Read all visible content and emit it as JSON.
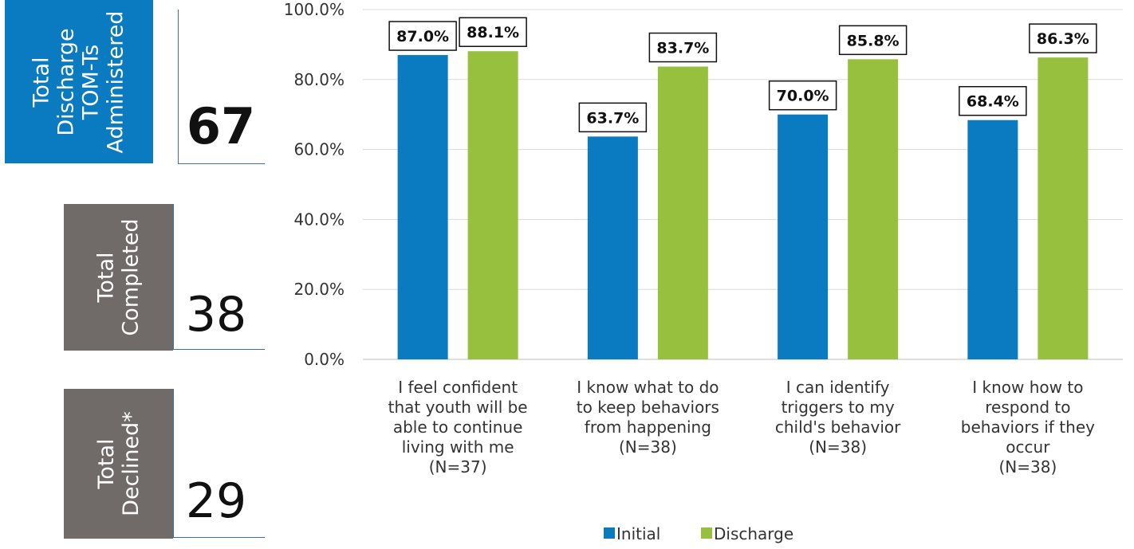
{
  "stats": {
    "administered": {
      "label_lines": [
        "Total",
        "Discharge",
        "TOM-Ts",
        "Administered"
      ],
      "value": "67",
      "color": "#0a7bc1"
    },
    "completed": {
      "label_lines": [
        "Total",
        "Completed"
      ],
      "value": "38",
      "color": "#706b69"
    },
    "declined": {
      "label_lines": [
        "Total",
        "Declined*"
      ],
      "value": "29",
      "color": "#706b69"
    }
  },
  "chart_data": {
    "type": "bar",
    "title": "",
    "xlabel": "",
    "ylabel": "",
    "ylim": [
      0,
      100
    ],
    "y_ticks": [
      "0.0%",
      "20.0%",
      "40.0%",
      "60.0%",
      "80.0%",
      "100.0%"
    ],
    "grid": true,
    "legend_position": "bottom",
    "categories": [
      [
        "I feel confident",
        "that youth will be",
        "able to continue",
        "living with me",
        "(N=37)"
      ],
      [
        "I know what to do",
        "to keep behaviors",
        "from happening",
        "(N=38)"
      ],
      [
        "I can identify",
        "triggers to my",
        "child's behavior",
        "(N=38)"
      ],
      [
        "I know how to",
        "respond to",
        "behaviors if they",
        "occur",
        "(N=38)"
      ]
    ],
    "series": [
      {
        "name": "Initial",
        "color": "#0a7bc1",
        "values": [
          87.0,
          63.7,
          70.0,
          68.4
        ],
        "labels": [
          "87.0%",
          "63.7%",
          "70.0%",
          "68.4%"
        ]
      },
      {
        "name": "Discharge",
        "color": "#96c03d",
        "values": [
          88.1,
          83.7,
          85.8,
          86.3
        ],
        "labels": [
          "88.1%",
          "83.7%",
          "85.8%",
          "86.3%"
        ]
      }
    ]
  }
}
